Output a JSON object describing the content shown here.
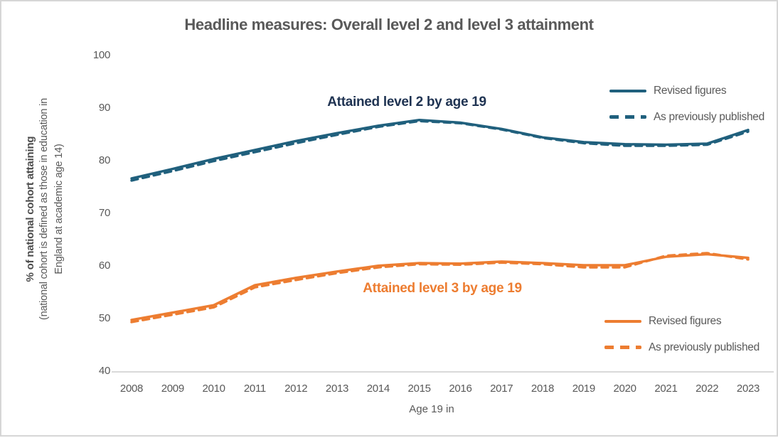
{
  "title": "Headline measures: Overall level 2 and level 3 attainment",
  "y_axis": {
    "label_bold": "% of national cohort attaining",
    "label_note": "(national cohort is defined as those in education in England at academic age 14)"
  },
  "x_axis": {
    "label": "Age 19 in"
  },
  "annotations": {
    "level2": "Attained level 2 by age 19",
    "level3": "Attained level 3 by age 19"
  },
  "legend": {
    "revised": "Revised figures",
    "previous": "As previously published"
  },
  "colors": {
    "level2": "#20607d",
    "level2_label": "#1f3352",
    "level3": "#ed7d31",
    "text": "#595959",
    "axis": "#d9d9d9"
  },
  "chart_data": {
    "type": "line",
    "title": "Headline measures: Overall level 2 and level 3 attainment",
    "xlabel": "Age 19 in",
    "ylabel": "% of national cohort attaining (national cohort is defined as those in education in England at academic age 14)",
    "ylim": [
      40,
      100
    ],
    "yticks": [
      100,
      90,
      80,
      70,
      60,
      50,
      40
    ],
    "grid": false,
    "legend_position": "inline-right",
    "categories": [
      "2008",
      "2009",
      "2010",
      "2011",
      "2012",
      "2013",
      "2014",
      "2015",
      "2016",
      "2017",
      "2018",
      "2019",
      "2020",
      "2021",
      "2022",
      "2023"
    ],
    "series": [
      {
        "name": "Attained level 2 by age 19 — Revised figures",
        "color_key": "level2",
        "style": "solid",
        "data_name": "level2-revised-line",
        "values": [
          76.5,
          78.3,
          80.2,
          81.9,
          83.6,
          85.1,
          86.5,
          87.6,
          87.1,
          85.9,
          84.3,
          83.4,
          83.0,
          82.9,
          83.1,
          85.7
        ]
      },
      {
        "name": "Attained level 2 by age 19 — As previously published",
        "color_key": "level2",
        "style": "dashed",
        "data_name": "level2-previous-line",
        "values": [
          76.1,
          77.9,
          79.8,
          81.5,
          83.2,
          84.8,
          86.3,
          87.4,
          87.0,
          85.8,
          84.2,
          83.2,
          82.7,
          82.7,
          82.9,
          85.4
        ]
      },
      {
        "name": "Attained level 3 by age 19 — Revised figures",
        "color_key": "level3",
        "style": "solid",
        "data_name": "level3-revised-line",
        "values": [
          49.6,
          51.0,
          52.4,
          56.2,
          57.6,
          58.8,
          59.9,
          60.4,
          60.3,
          60.7,
          60.4,
          60.0,
          60.0,
          61.6,
          62.1,
          61.4
        ]
      },
      {
        "name": "Attained level 3 by age 19 — As previously published",
        "color_key": "level3",
        "style": "dashed",
        "data_name": "level3-previous-line",
        "values": [
          49.2,
          50.6,
          52.0,
          55.8,
          57.2,
          58.5,
          59.6,
          60.2,
          60.1,
          60.5,
          60.2,
          59.6,
          59.6,
          61.8,
          62.3,
          61.1
        ]
      }
    ]
  }
}
